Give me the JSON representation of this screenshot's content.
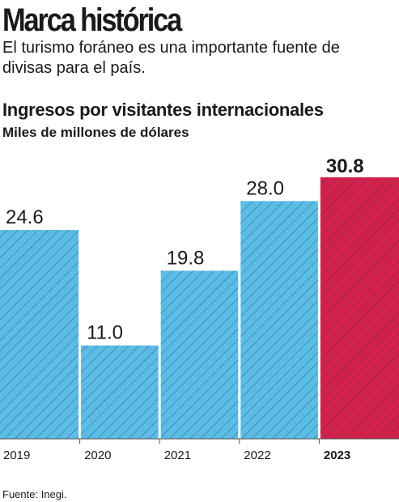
{
  "header": {
    "title": "Marca histórica",
    "subtitle": "El turismo foráneo es una importante fuente de divisas para el país."
  },
  "footer": {
    "source": "Fuente: Inegi."
  },
  "colors": {
    "bar": "#5bbde6",
    "highlight": "#d4204a",
    "hatch": "#1b3f5a",
    "text": "#1a1a1a",
    "axis": "#555555"
  },
  "chart_data": {
    "type": "bar",
    "title": "Ingresos por visitantes internacionales",
    "subtitle": "Miles de millones de dólares",
    "categories": [
      "2019",
      "2020",
      "2021",
      "2022",
      "2023"
    ],
    "values": [
      24.6,
      11.0,
      19.8,
      28.0,
      30.8
    ],
    "value_labels": [
      "24.6",
      "11.0",
      "19.8",
      "28.0",
      "30.8"
    ],
    "highlight": "2023",
    "ylim": [
      0,
      30.8
    ],
    "grid": false,
    "legend": "none"
  }
}
